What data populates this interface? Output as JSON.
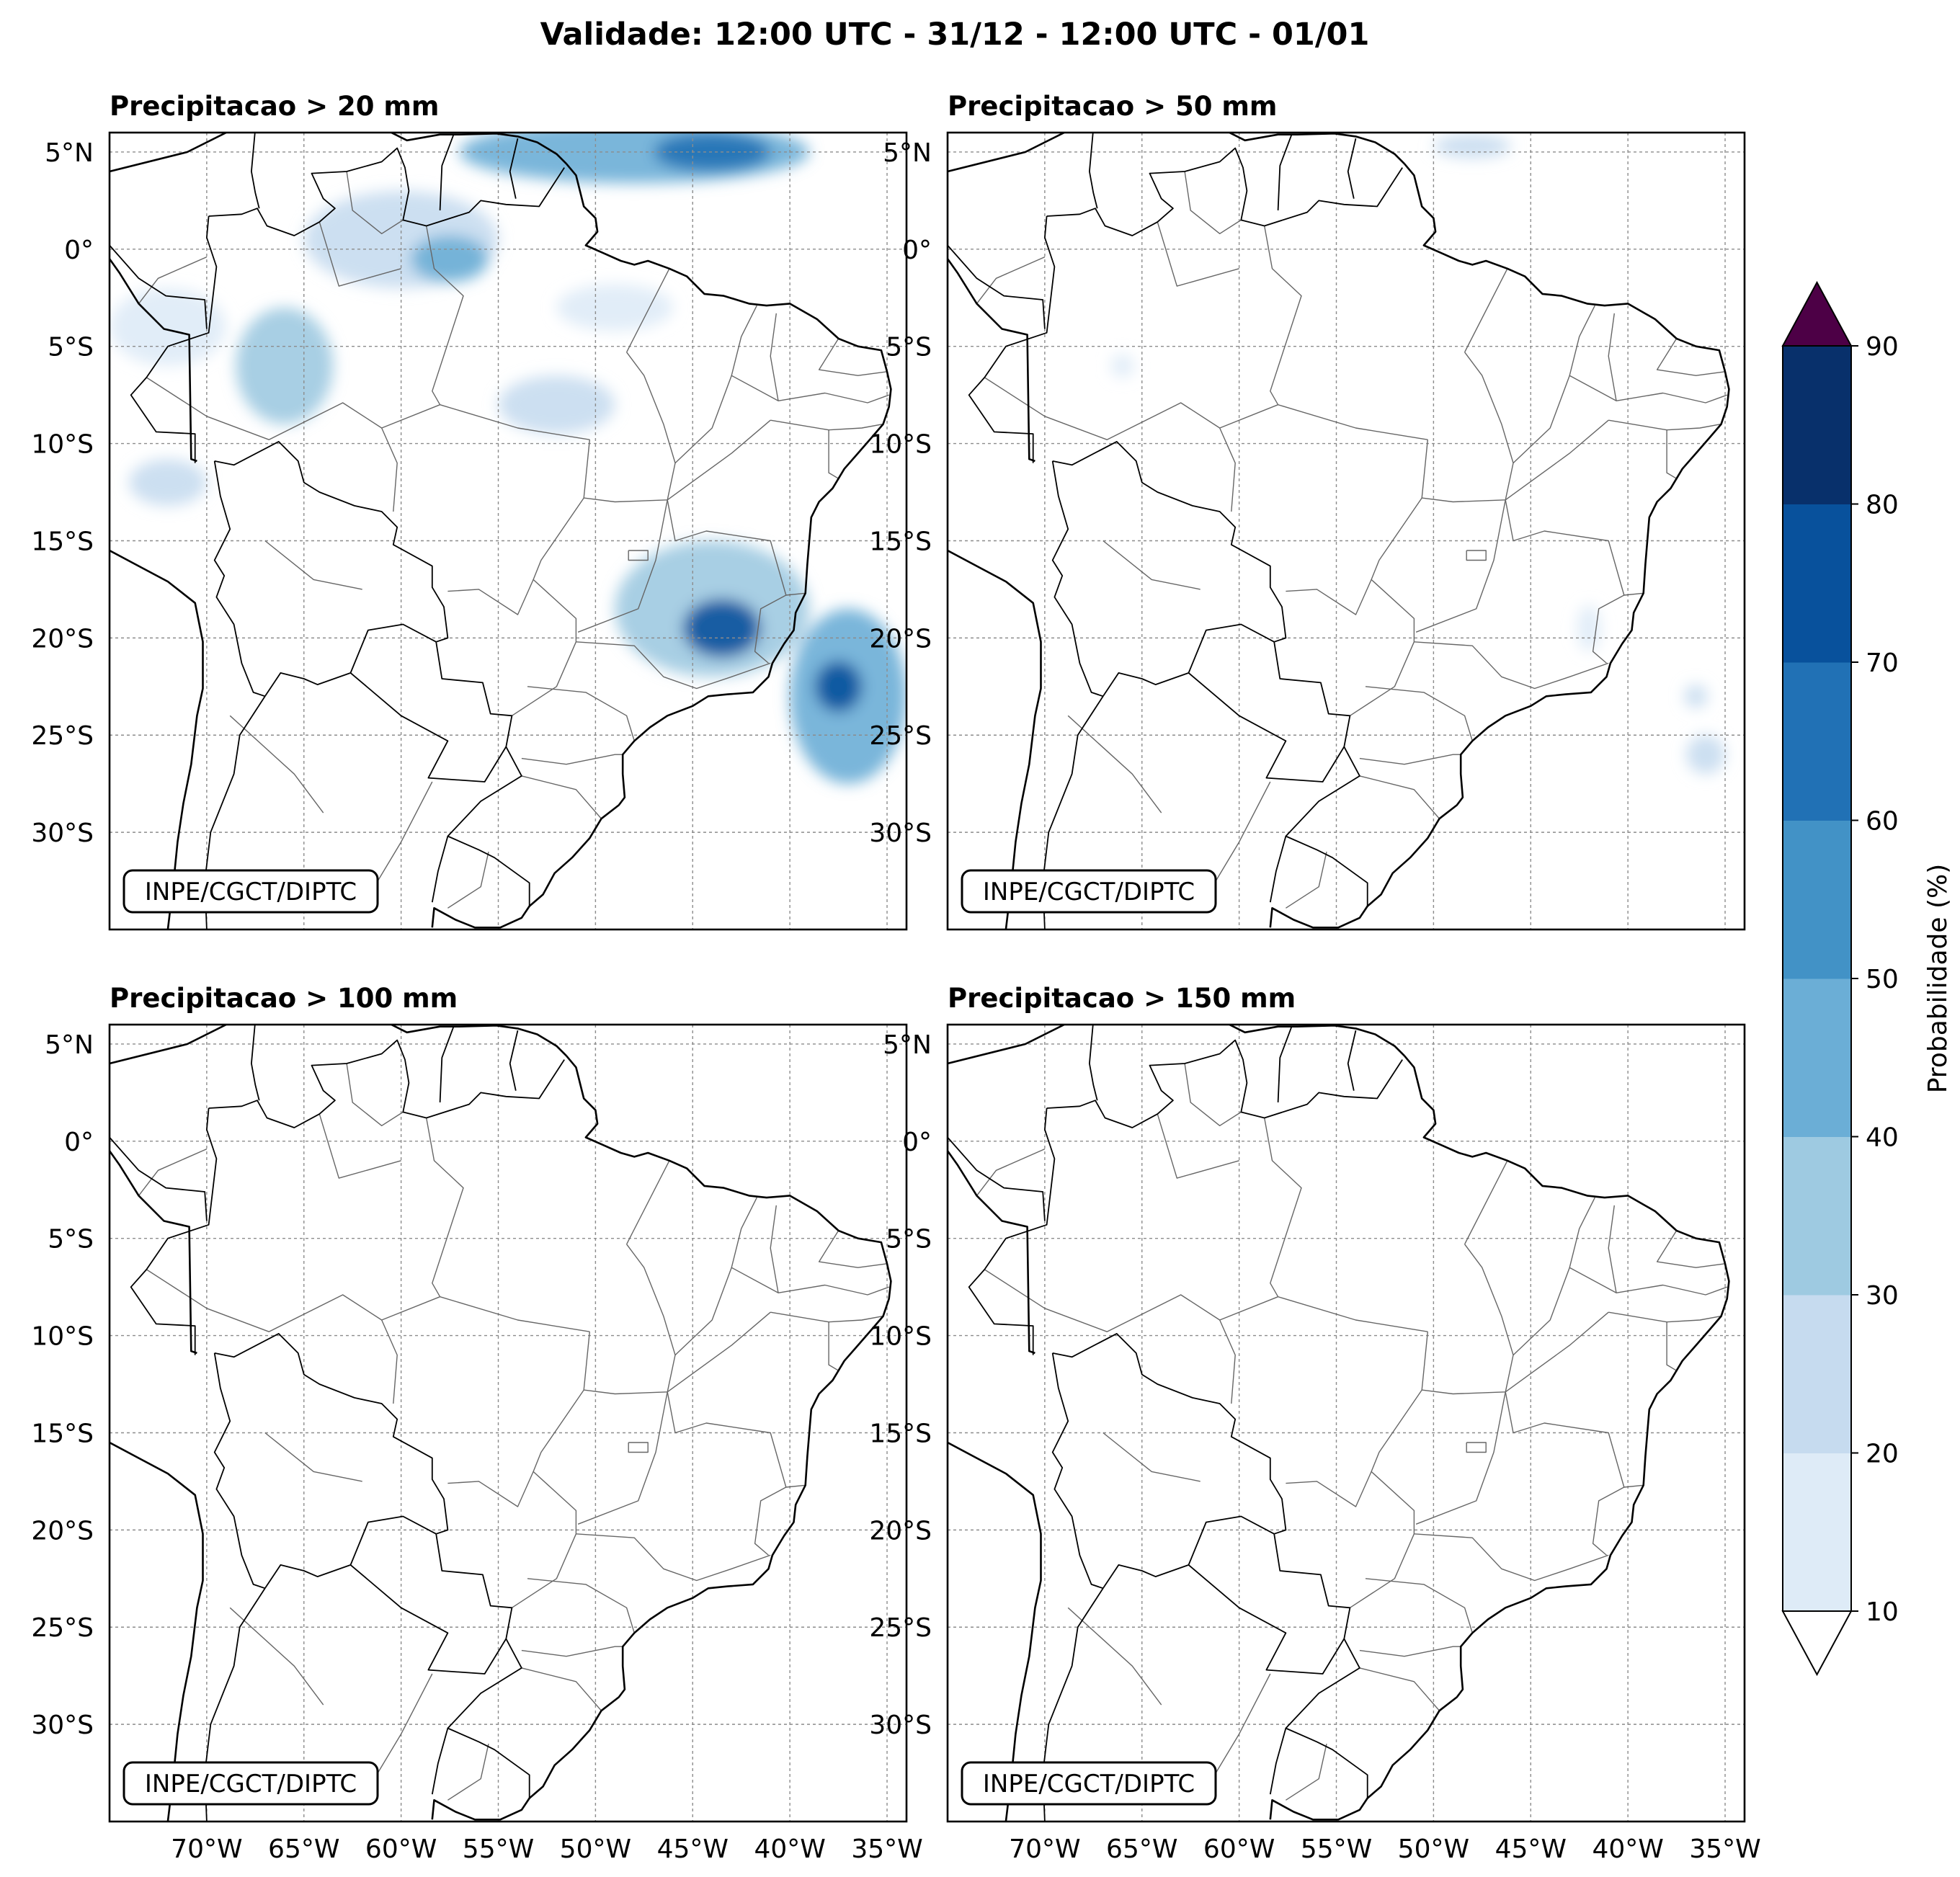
{
  "figure": {
    "title": "Validade: 12:00 UTC - 31/12 - 12:00 UTC - 01/01",
    "credit": "INPE/CGCT/DIPTC"
  },
  "map_axes": {
    "lon_range": [
      -75,
      -34
    ],
    "lat_range": [
      -35,
      6
    ],
    "lon_ticks": [
      -70,
      -65,
      -60,
      -55,
      -50,
      -45,
      -40,
      -35
    ],
    "lon_tick_labels": [
      "70°W",
      "65°W",
      "60°W",
      "55°W",
      "50°W",
      "45°W",
      "40°W",
      "35°W"
    ],
    "lat_ticks": [
      5,
      0,
      -5,
      -10,
      -15,
      -20,
      -25,
      -30
    ],
    "lat_tick_labels": [
      "5°N",
      "0°",
      "5°S",
      "10°S",
      "15°S",
      "20°S",
      "25°S",
      "30°S"
    ]
  },
  "panels": [
    {
      "title": "Precipitacao > 20 mm",
      "areas": [
        {
          "lon": -48,
          "lat": 5,
          "rlon": 9,
          "rlat": 1.6,
          "prob": 45
        },
        {
          "lon": -44,
          "lat": 5,
          "rlon": 3,
          "rlat": 1.0,
          "prob": 65
        },
        {
          "lon": -60,
          "lat": 0.5,
          "rlon": 5,
          "rlat": 2.5,
          "prob": 25
        },
        {
          "lon": -57.5,
          "lat": -0.5,
          "rlon": 2,
          "rlat": 1.2,
          "prob": 45
        },
        {
          "lon": -66,
          "lat": -6,
          "rlon": 2.5,
          "rlat": 3,
          "prob": 30
        },
        {
          "lon": -72,
          "lat": -4,
          "rlon": 3,
          "rlat": 2,
          "prob": 15
        },
        {
          "lon": -52,
          "lat": -8,
          "rlon": 3,
          "rlat": 1.5,
          "prob": 25
        },
        {
          "lon": -49,
          "lat": -3,
          "rlon": 3,
          "rlat": 1.2,
          "prob": 15
        },
        {
          "lon": -72,
          "lat": -12,
          "rlon": 2,
          "rlat": 1.2,
          "prob": 20
        },
        {
          "lon": -44,
          "lat": -18.5,
          "rlon": 5,
          "rlat": 3.5,
          "prob": 30
        },
        {
          "lon": -43.5,
          "lat": -19.5,
          "rlon": 2,
          "rlat": 1.5,
          "prob": 75
        },
        {
          "lon": -37,
          "lat": -23,
          "rlon": 3,
          "rlat": 4.5,
          "prob": 40
        },
        {
          "lon": -37.5,
          "lat": -22.5,
          "rlon": 1.2,
          "rlat": 1.3,
          "prob": 70
        }
      ]
    },
    {
      "title": "Precipitacao > 50 mm",
      "areas": [
        {
          "lon": -48,
          "lat": 5.3,
          "rlon": 2,
          "rlat": 0.6,
          "prob": 20
        },
        {
          "lon": -36,
          "lat": -26,
          "rlon": 1,
          "rlat": 1,
          "prob": 20
        },
        {
          "lon": -36.5,
          "lat": -23,
          "rlon": 0.6,
          "rlat": 0.6,
          "prob": 20
        },
        {
          "lon": -42,
          "lat": -19.5,
          "rlon": 0.6,
          "rlat": 1.2,
          "prob": 15
        },
        {
          "lon": -66,
          "lat": -6,
          "rlon": 0.6,
          "rlat": 0.6,
          "prob": 15
        }
      ]
    },
    {
      "title": "Precipitacao > 100 mm",
      "areas": []
    },
    {
      "title": "Precipitacao > 150 mm",
      "areas": []
    }
  ],
  "colorbar": {
    "label": "Probabilidade (%)",
    "levels": [
      10,
      20,
      30,
      40,
      50,
      60,
      70,
      80,
      90
    ],
    "colors": [
      "#deebf7",
      "#c6dbef",
      "#9ecae1",
      "#6baed6",
      "#4292c6",
      "#2171b5",
      "#08519c",
      "#08306b"
    ],
    "over_color": "#4d0046",
    "under_color": "#ffffff"
  }
}
